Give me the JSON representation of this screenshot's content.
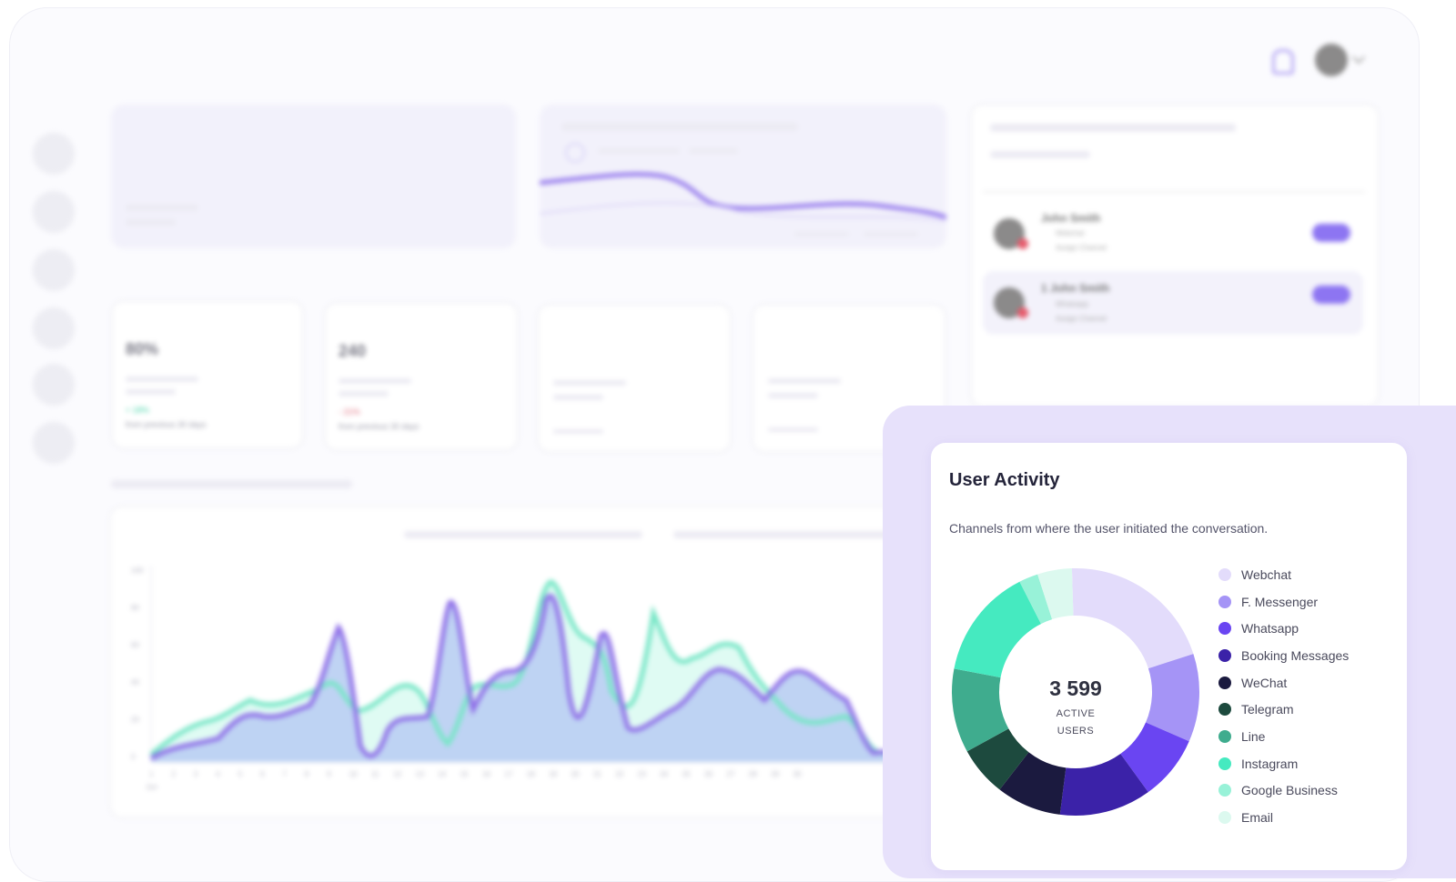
{
  "background_dashboard": {
    "stats": [
      {
        "value": "80%",
        "change": "+ 18%",
        "note": "from previous 30 days"
      },
      {
        "value": "240",
        "change": "- 21%",
        "note": "from previous 30 days"
      }
    ],
    "contacts": [
      {
        "name": "John Smith",
        "channel": "Webchat",
        "status": "Assign Channel"
      },
      {
        "name": "1 John Smith",
        "channel": "Whatsapp",
        "status": "Assign Channel"
      }
    ],
    "chart_x_labels": [
      "1",
      "2",
      "3",
      "4",
      "5",
      "6",
      "7",
      "8",
      "9",
      "10",
      "11",
      "12",
      "13",
      "14",
      "15",
      "16",
      "17",
      "18",
      "19",
      "20",
      "21",
      "22",
      "23",
      "24",
      "25",
      "26",
      "27",
      "28",
      "29",
      "30"
    ],
    "chart_y_labels": [
      "100",
      "80",
      "60",
      "40",
      "20",
      "0"
    ],
    "chart_x_sub": "Jun"
  },
  "user_activity": {
    "title": "User Activity",
    "subtitle": "Channels from where the user initiated the conversation.",
    "total": "3 599",
    "total_label_line1": "ACTIVE",
    "total_label_line2": "USERS",
    "channels": [
      {
        "label": "Webchat",
        "color": "#e3dcfb",
        "share": 0.205
      },
      {
        "label": "F. Messenger",
        "color": "#a594f6",
        "share": 0.115
      },
      {
        "label": "Whatsapp",
        "color": "#6a45f2",
        "share": 0.085
      },
      {
        "label": "Booking Messages",
        "color": "#3b22a8",
        "share": 0.12
      },
      {
        "label": "WeChat",
        "color": "#1b1a3f",
        "share": 0.085
      },
      {
        "label": "Telegram",
        "color": "#1d4a3e",
        "share": 0.065
      },
      {
        "label": "Line",
        "color": "#3fac8e",
        "share": 0.11
      },
      {
        "label": "Instagram",
        "color": "#45eac0",
        "share": 0.145
      },
      {
        "label": "Google Business",
        "color": "#98f2d8",
        "share": 0.025
      },
      {
        "label": "Email",
        "color": "#dcf9ef",
        "share": 0.045
      }
    ]
  }
}
